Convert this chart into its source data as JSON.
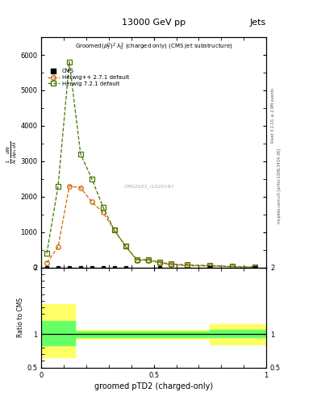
{
  "title_top": "13000 GeV pp",
  "title_right": "Jets",
  "xlabel": "groomed pTD2 (charged-only)",
  "rivet_label": "Rivet 3.1.10, ≥ 2.9M events",
  "arxiv_label": "mcplots.cern.ch [arXiv:1306.3434-36]",
  "watermark": "CMS2021_I1920187",
  "x_herwig_pp": [
    0.025,
    0.075,
    0.125,
    0.175,
    0.225,
    0.275,
    0.325,
    0.375,
    0.425,
    0.475,
    0.525,
    0.575,
    0.65,
    0.75,
    0.85,
    0.95
  ],
  "y_herwig_pp": [
    130,
    580,
    2300,
    2250,
    1850,
    1550,
    1050,
    600,
    200,
    200,
    130,
    80,
    50,
    40,
    15,
    5
  ],
  "x_herwig7": [
    0.025,
    0.075,
    0.125,
    0.175,
    0.225,
    0.275,
    0.325,
    0.375,
    0.425,
    0.475,
    0.525,
    0.575,
    0.65,
    0.75,
    0.85,
    0.95
  ],
  "y_herwig7": [
    400,
    2300,
    5800,
    3200,
    2500,
    1700,
    1050,
    600,
    220,
    220,
    150,
    100,
    70,
    55,
    25,
    10
  ],
  "x_cms": [
    0.025,
    0.075,
    0.125,
    0.175,
    0.225,
    0.275,
    0.325,
    0.375,
    0.525,
    0.75,
    0.95
  ],
  "y_cms": [
    0,
    0,
    0,
    0,
    0,
    0,
    0,
    0,
    0,
    0,
    0
  ],
  "color_herwig_pp": "#cc6600",
  "color_herwig7": "#447700",
  "color_cms": "#000000",
  "ylim_main": [
    0,
    6500
  ],
  "xlim": [
    0,
    1.0
  ],
  "yticks_main": [
    0,
    1000,
    2000,
    3000,
    4000,
    5000,
    6000
  ],
  "ratio_ylim": [
    0.5,
    2.0
  ],
  "ratio_yticks": [
    0.5,
    1.0,
    2.0
  ],
  "band1_x": [
    0.0,
    0.15,
    0.15,
    0.75,
    0.75,
    1.0
  ],
  "band1_ylow": [
    0.65,
    0.65,
    0.93,
    0.93,
    0.85,
    0.85
  ],
  "band1_yhigh": [
    1.45,
    1.45,
    1.07,
    1.07,
    1.15,
    1.15
  ],
  "band2_x": [
    0.0,
    0.15,
    0.15,
    0.75,
    0.75,
    1.0
  ],
  "band2_ylow": [
    0.83,
    0.83,
    0.96,
    0.96,
    0.95,
    0.95
  ],
  "band2_yhigh": [
    1.2,
    1.2,
    1.04,
    1.04,
    1.07,
    1.07
  ]
}
